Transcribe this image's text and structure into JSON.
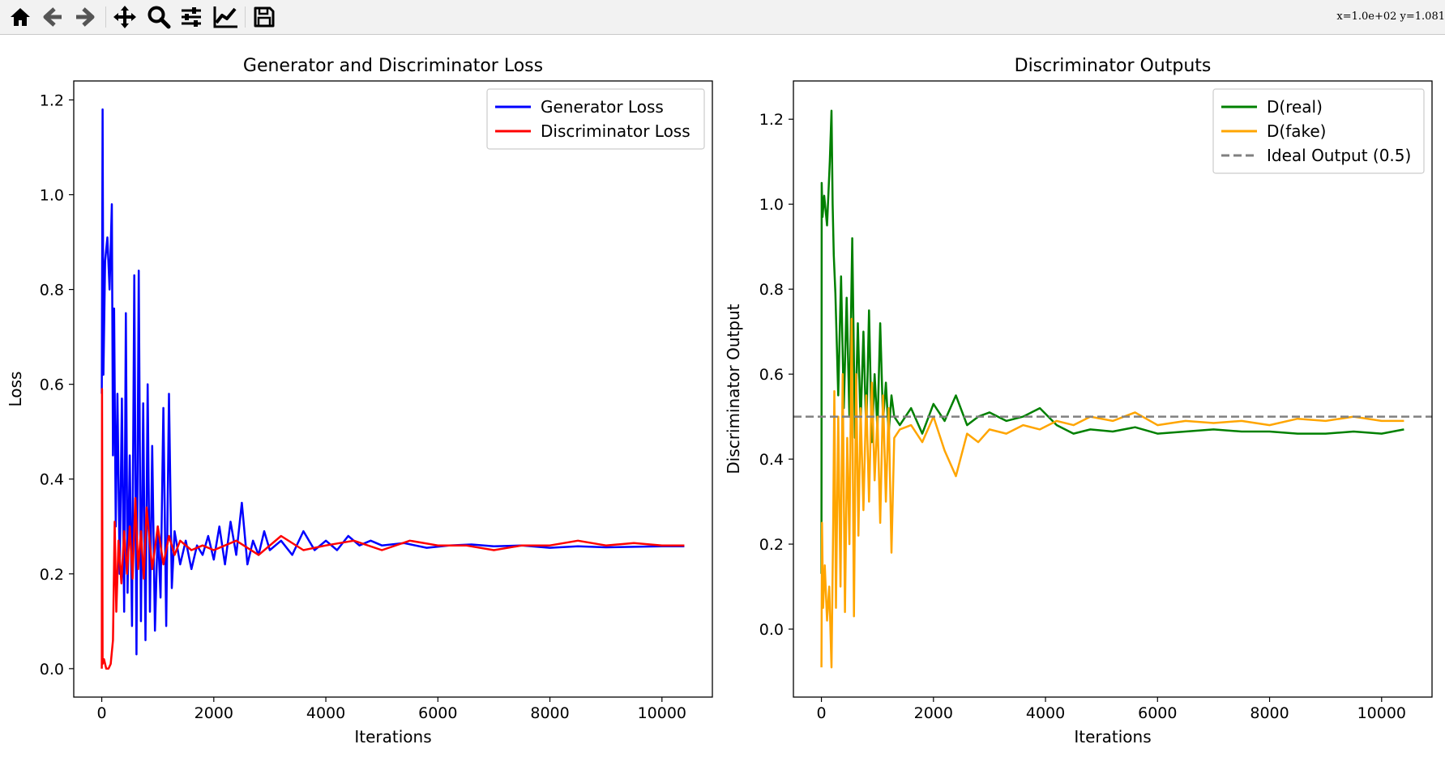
{
  "toolbar": {
    "buttons": [
      {
        "name": "home-icon"
      },
      {
        "name": "back-icon"
      },
      {
        "name": "forward-icon"
      },
      {
        "name": "pan-icon"
      },
      {
        "name": "zoom-icon"
      },
      {
        "name": "subplots-icon"
      },
      {
        "name": "edit-axes-icon"
      },
      {
        "name": "save-icon"
      }
    ],
    "coords": "x=1.0e+02  y=1.081"
  },
  "colors": {
    "generator": "#0000ff",
    "discriminator": "#ff0000",
    "dreal": "#008000",
    "dfake": "#ffa500",
    "ideal": "#808080"
  },
  "chart_data": [
    {
      "type": "line",
      "title": "Generator and Discriminator Loss",
      "xlabel": "Iterations",
      "ylabel": "Loss",
      "xlim": [
        -500,
        10900
      ],
      "ylim": [
        -0.06,
        1.24
      ],
      "xticks": [
        0,
        2000,
        4000,
        6000,
        8000,
        10000
      ],
      "yticks": [
        0.0,
        0.2,
        0.4,
        0.6,
        0.8,
        1.0,
        1.2
      ],
      "legend_position": "top-right",
      "series": [
        {
          "name": "Generator Loss",
          "color": "#0000ff",
          "x": [
            0,
            15,
            30,
            60,
            100,
            140,
            180,
            200,
            220,
            250,
            280,
            320,
            360,
            400,
            430,
            460,
            500,
            540,
            580,
            620,
            660,
            700,
            740,
            780,
            820,
            860,
            900,
            950,
            1000,
            1050,
            1100,
            1150,
            1200,
            1250,
            1300,
            1400,
            1500,
            1600,
            1700,
            1800,
            1900,
            2000,
            2100,
            2200,
            2300,
            2400,
            2500,
            2600,
            2700,
            2800,
            2900,
            3000,
            3200,
            3400,
            3600,
            3800,
            4000,
            4200,
            4400,
            4600,
            4800,
            5000,
            5400,
            5800,
            6200,
            6600,
            7000,
            7500,
            8000,
            8500,
            9000,
            9500,
            10000,
            10400
          ],
          "y": [
            0.58,
            1.18,
            0.62,
            0.86,
            0.91,
            0.8,
            0.98,
            0.45,
            0.76,
            0.3,
            0.58,
            0.2,
            0.57,
            0.12,
            0.75,
            0.16,
            0.45,
            0.09,
            0.83,
            0.03,
            0.84,
            0.1,
            0.56,
            0.06,
            0.6,
            0.12,
            0.47,
            0.08,
            0.3,
            0.15,
            0.55,
            0.09,
            0.58,
            0.17,
            0.29,
            0.22,
            0.27,
            0.21,
            0.26,
            0.24,
            0.28,
            0.23,
            0.3,
            0.22,
            0.31,
            0.24,
            0.35,
            0.22,
            0.27,
            0.24,
            0.29,
            0.25,
            0.27,
            0.24,
            0.29,
            0.25,
            0.27,
            0.25,
            0.28,
            0.26,
            0.27,
            0.26,
            0.265,
            0.255,
            0.26,
            0.262,
            0.258,
            0.26,
            0.255,
            0.258,
            0.256,
            0.257,
            0.258,
            0.258
          ]
        },
        {
          "name": "Discriminator Loss",
          "color": "#ff0000",
          "x": [
            0,
            5,
            15,
            40,
            80,
            120,
            160,
            200,
            230,
            260,
            300,
            350,
            400,
            450,
            500,
            550,
            600,
            650,
            700,
            750,
            800,
            900,
            1000,
            1100,
            1200,
            1300,
            1400,
            1600,
            1800,
            2000,
            2400,
            2800,
            3200,
            3600,
            4000,
            4500,
            5000,
            5500,
            6000,
            6500,
            7000,
            7500,
            8000,
            8500,
            9000,
            9500,
            10000,
            10400
          ],
          "y": [
            0.0,
            0.59,
            0.01,
            0.02,
            0.0,
            0.0,
            0.01,
            0.06,
            0.31,
            0.12,
            0.27,
            0.18,
            0.29,
            0.2,
            0.3,
            0.19,
            0.36,
            0.21,
            0.29,
            0.19,
            0.34,
            0.21,
            0.3,
            0.22,
            0.28,
            0.24,
            0.27,
            0.25,
            0.26,
            0.25,
            0.27,
            0.24,
            0.28,
            0.25,
            0.26,
            0.27,
            0.25,
            0.27,
            0.26,
            0.26,
            0.25,
            0.26,
            0.26,
            0.27,
            0.26,
            0.265,
            0.26,
            0.26
          ]
        }
      ]
    },
    {
      "type": "line",
      "title": "Discriminator Outputs",
      "xlabel": "Iterations",
      "ylabel": "Discriminator Output",
      "xlim": [
        -500,
        10900
      ],
      "ylim": [
        -0.16,
        1.29
      ],
      "xticks": [
        0,
        2000,
        4000,
        6000,
        8000,
        10000
      ],
      "yticks": [
        0.0,
        0.2,
        0.4,
        0.6,
        0.8,
        1.0,
        1.2
      ],
      "legend_position": "top-right",
      "series": [
        {
          "name": "D(real)",
          "color": "#008000",
          "x": [
            0,
            5,
            20,
            50,
            100,
            150,
            180,
            200,
            220,
            250,
            300,
            350,
            400,
            450,
            500,
            550,
            600,
            650,
            700,
            750,
            800,
            850,
            900,
            950,
            1000,
            1050,
            1100,
            1150,
            1200,
            1250,
            1300,
            1400,
            1600,
            1800,
            2000,
            2200,
            2400,
            2600,
            2800,
            3000,
            3300,
            3600,
            3900,
            4200,
            4500,
            4800,
            5200,
            5600,
            6000,
            6500,
            7000,
            7500,
            8000,
            8500,
            9000,
            9500,
            10000,
            10400
          ],
          "y": [
            0.13,
            1.05,
            0.97,
            1.02,
            0.95,
            1.1,
            1.22,
            1.0,
            0.88,
            0.79,
            0.55,
            0.83,
            0.52,
            0.78,
            0.5,
            0.92,
            0.45,
            0.72,
            0.48,
            0.7,
            0.46,
            0.75,
            0.44,
            0.6,
            0.47,
            0.72,
            0.49,
            0.58,
            0.46,
            0.55,
            0.5,
            0.48,
            0.52,
            0.46,
            0.53,
            0.49,
            0.55,
            0.48,
            0.5,
            0.51,
            0.49,
            0.5,
            0.52,
            0.48,
            0.46,
            0.47,
            0.465,
            0.475,
            0.46,
            0.465,
            0.47,
            0.465,
            0.465,
            0.46,
            0.46,
            0.465,
            0.46,
            0.47
          ]
        },
        {
          "name": "D(fake)",
          "color": "#ffa500",
          "x": [
            0,
            10,
            30,
            60,
            100,
            140,
            180,
            210,
            230,
            260,
            300,
            340,
            380,
            420,
            460,
            500,
            540,
            580,
            620,
            660,
            700,
            750,
            800,
            850,
            900,
            950,
            1000,
            1050,
            1100,
            1150,
            1200,
            1250,
            1300,
            1400,
            1600,
            1800,
            2000,
            2200,
            2400,
            2600,
            2800,
            3000,
            3300,
            3600,
            3900,
            4200,
            4500,
            4800,
            5200,
            5600,
            6000,
            6500,
            7000,
            7500,
            8000,
            8500,
            9000,
            9500,
            10000,
            10400
          ],
          "y": [
            -0.09,
            0.25,
            0.05,
            0.15,
            0.02,
            0.1,
            -0.09,
            0.25,
            0.56,
            0.05,
            0.5,
            0.1,
            0.6,
            0.04,
            0.45,
            0.2,
            0.73,
            0.03,
            0.6,
            0.22,
            0.52,
            0.28,
            0.55,
            0.3,
            0.58,
            0.35,
            0.5,
            0.25,
            0.55,
            0.3,
            0.52,
            0.18,
            0.45,
            0.47,
            0.48,
            0.44,
            0.5,
            0.42,
            0.36,
            0.46,
            0.44,
            0.47,
            0.46,
            0.48,
            0.47,
            0.49,
            0.48,
            0.5,
            0.49,
            0.51,
            0.48,
            0.49,
            0.485,
            0.49,
            0.48,
            0.495,
            0.49,
            0.5,
            0.49,
            0.49
          ]
        },
        {
          "name": "Ideal Output (0.5)",
          "color": "#808080",
          "dashed": true,
          "x": [
            -500,
            10900
          ],
          "y": [
            0.5,
            0.5
          ]
        }
      ]
    }
  ]
}
